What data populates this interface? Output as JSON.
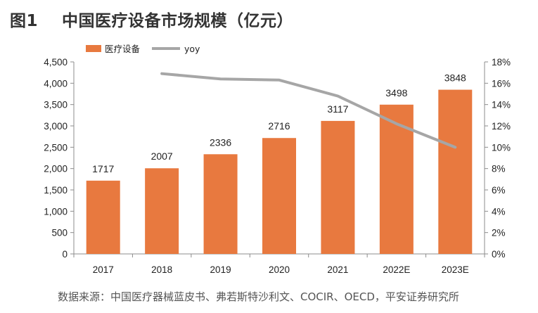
{
  "figure": {
    "title": "图1    中国医疗设备市场规模（亿元）",
    "source": "数据来源：中国医疗器械蓝皮书、弗若斯特沙利文、COCIR、OECD，平安证券研究所"
  },
  "chart_data": {
    "type": "bar",
    "categories": [
      "2017",
      "2018",
      "2019",
      "2020",
      "2021",
      "2022E",
      "2023E"
    ],
    "series": [
      {
        "name": "医疗设备",
        "kind": "bar",
        "axis": "left",
        "color": "#E8793F",
        "values": [
          1717,
          2007,
          2336,
          2716,
          3117,
          3498,
          3848
        ],
        "labels": [
          "1717",
          "2007",
          "2336",
          "2716",
          "3117",
          "3498",
          "3848"
        ]
      },
      {
        "name": "yoy",
        "kind": "line",
        "axis": "right",
        "color": "#A6A6A6",
        "values": [
          null,
          16.9,
          16.4,
          16.3,
          14.8,
          12.2,
          10.0
        ]
      }
    ],
    "left_axis": {
      "min": 0,
      "max": 4500,
      "ticks": [
        0,
        500,
        1000,
        1500,
        2000,
        2500,
        3000,
        3500,
        4000,
        4500
      ],
      "tick_labels": [
        "0",
        "500",
        "1,000",
        "1,500",
        "2,000",
        "2,500",
        "3,000",
        "3,500",
        "4,000",
        "4,500"
      ]
    },
    "right_axis": {
      "min": 0,
      "max": 18,
      "ticks": [
        0,
        2,
        4,
        6,
        8,
        10,
        12,
        14,
        16,
        18
      ],
      "tick_labels": [
        "0%",
        "2%",
        "4%",
        "6%",
        "8%",
        "10%",
        "12%",
        "14%",
        "16%",
        "18%"
      ]
    },
    "legend_position": "top-left",
    "grid": false
  }
}
